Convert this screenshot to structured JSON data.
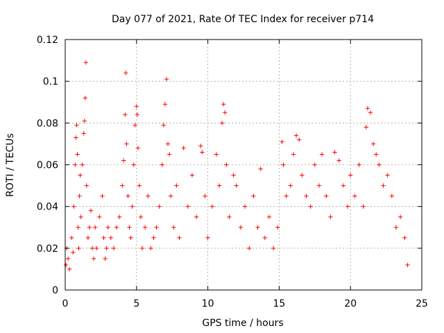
{
  "chart_data": {
    "type": "scatter",
    "title": "Day 077 of 2021, Rate Of TEC Index for receiver p714",
    "xlabel": "GPS time / hours",
    "ylabel": "ROTI / TECUs",
    "xlim": [
      0,
      25
    ],
    "ylim": [
      0,
      0.12
    ],
    "x_ticks": [
      0,
      5,
      10,
      15,
      20,
      25
    ],
    "x_tick_labels": [
      "0",
      "5",
      "10",
      "15",
      "20",
      "25"
    ],
    "y_ticks": [
      0,
      0.02,
      0.04,
      0.06,
      0.08,
      0.1,
      0.12
    ],
    "y_tick_labels": [
      "0",
      "0.02",
      "0.04",
      "0.06",
      "0.08",
      "0.1",
      "0.12"
    ],
    "grid": true,
    "marker": "+",
    "marker_color": "#ff0000",
    "series": [
      {
        "name": "ROTI",
        "x": [
          0.05,
          0.1,
          0.2,
          0.3,
          0.45,
          0.55,
          0.6,
          0.7,
          0.75,
          0.8,
          0.85,
          0.9,
          0.95,
          1.0,
          1.05,
          1.1,
          1.2,
          1.3,
          1.35,
          1.4,
          1.45,
          1.5,
          1.6,
          1.7,
          1.8,
          1.9,
          2.0,
          2.1,
          2.2,
          2.4,
          2.6,
          2.7,
          2.8,
          2.9,
          3.0,
          3.2,
          3.4,
          3.6,
          3.8,
          4.0,
          4.1,
          4.2,
          4.25,
          4.3,
          4.4,
          4.5,
          4.6,
          4.7,
          4.8,
          4.9,
          5.0,
          5.05,
          5.1,
          5.2,
          5.3,
          5.4,
          5.6,
          5.8,
          6.0,
          6.2,
          6.4,
          6.6,
          6.8,
          6.9,
          7.0,
          7.1,
          7.2,
          7.3,
          7.4,
          7.6,
          7.8,
          8.0,
          8.3,
          8.6,
          8.9,
          9.2,
          9.5,
          9.6,
          9.8,
          10.0,
          10.3,
          10.6,
          10.8,
          11.0,
          11.1,
          11.2,
          11.3,
          11.5,
          11.8,
          12.0,
          12.3,
          12.6,
          12.9,
          13.2,
          13.5,
          13.7,
          14.0,
          14.3,
          14.6,
          14.9,
          15.2,
          15.3,
          15.5,
          15.8,
          16.0,
          16.2,
          16.4,
          16.6,
          16.9,
          17.2,
          17.5,
          17.8,
          18.0,
          18.3,
          18.6,
          18.9,
          19.2,
          19.5,
          19.8,
          20.0,
          20.3,
          20.6,
          20.9,
          21.1,
          21.2,
          21.4,
          21.6,
          21.8,
          22.0,
          22.3,
          22.6,
          22.9,
          23.2,
          23.5,
          23.8,
          24.0
        ],
        "y": [
          0.012,
          0.02,
          0.015,
          0.01,
          0.025,
          0.018,
          0.04,
          0.06,
          0.073,
          0.079,
          0.065,
          0.03,
          0.02,
          0.045,
          0.055,
          0.035,
          0.06,
          0.075,
          0.081,
          0.092,
          0.109,
          0.05,
          0.025,
          0.03,
          0.038,
          0.02,
          0.015,
          0.03,
          0.02,
          0.035,
          0.045,
          0.025,
          0.015,
          0.02,
          0.03,
          0.025,
          0.02,
          0.03,
          0.035,
          0.05,
          0.062,
          0.084,
          0.104,
          0.07,
          0.045,
          0.03,
          0.025,
          0.04,
          0.06,
          0.079,
          0.088,
          0.084,
          0.068,
          0.05,
          0.035,
          0.02,
          0.03,
          0.045,
          0.02,
          0.025,
          0.03,
          0.04,
          0.06,
          0.079,
          0.089,
          0.101,
          0.07,
          0.065,
          0.045,
          0.03,
          0.05,
          0.025,
          0.068,
          0.04,
          0.055,
          0.035,
          0.069,
          0.066,
          0.045,
          0.025,
          0.04,
          0.065,
          0.05,
          0.08,
          0.089,
          0.085,
          0.06,
          0.035,
          0.055,
          0.05,
          0.03,
          0.04,
          0.02,
          0.045,
          0.03,
          0.058,
          0.025,
          0.035,
          0.02,
          0.03,
          0.071,
          0.06,
          0.045,
          0.05,
          0.065,
          0.074,
          0.072,
          0.055,
          0.045,
          0.04,
          0.06,
          0.05,
          0.065,
          0.045,
          0.035,
          0.066,
          0.062,
          0.05,
          0.04,
          0.055,
          0.045,
          0.06,
          0.04,
          0.078,
          0.087,
          0.085,
          0.07,
          0.065,
          0.06,
          0.05,
          0.055,
          0.045,
          0.03,
          0.035,
          0.025,
          0.012
        ]
      }
    ]
  }
}
